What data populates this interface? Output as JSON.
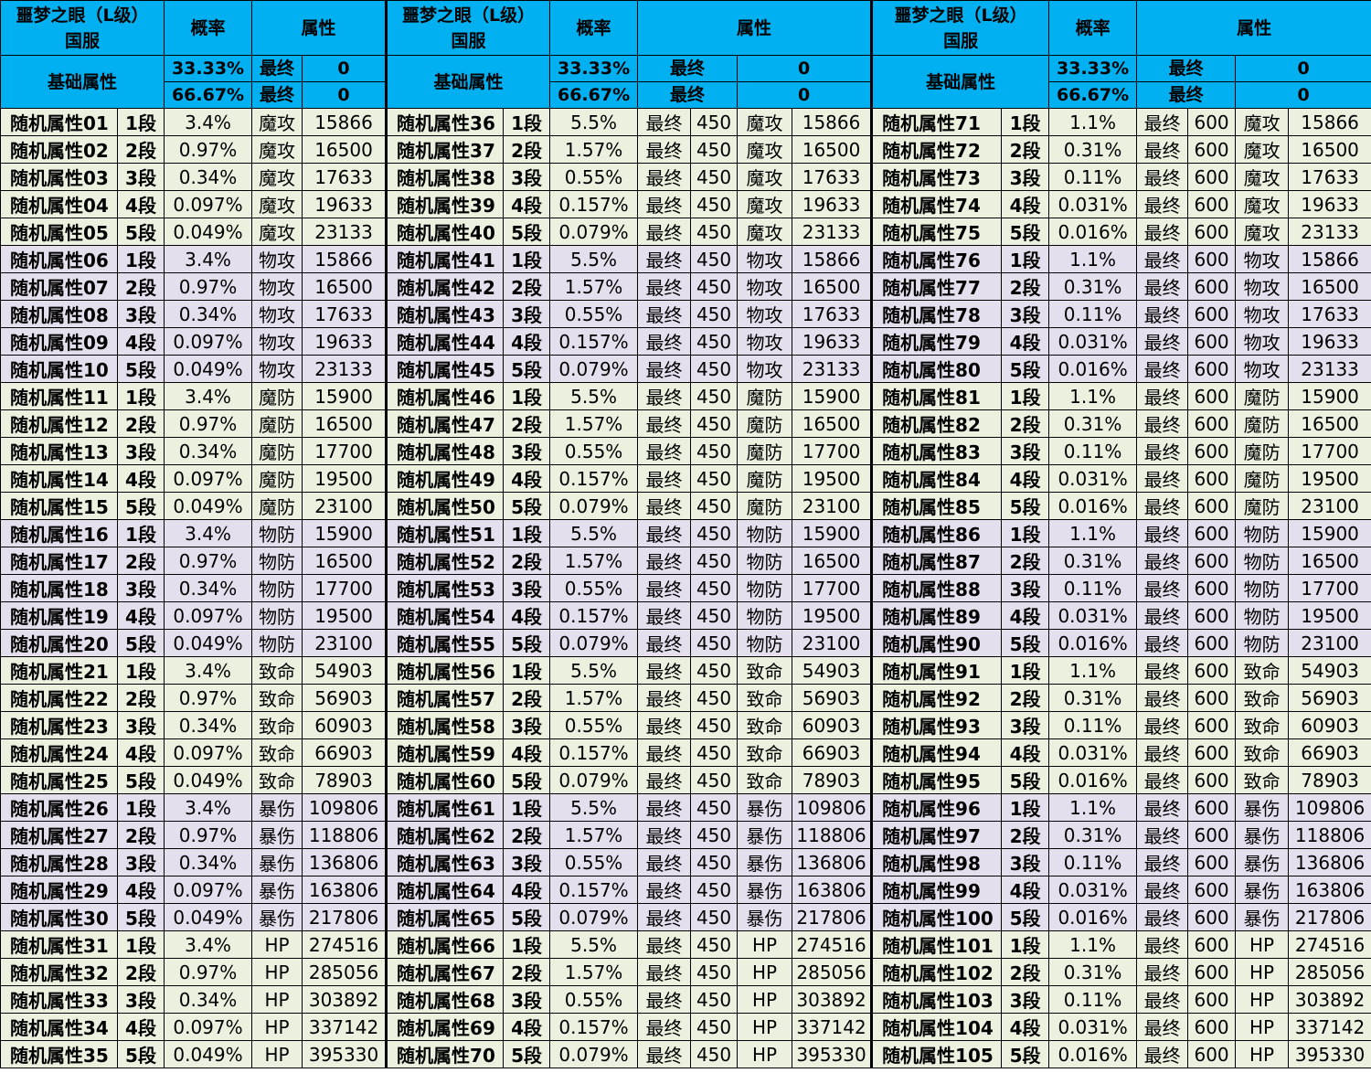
{
  "header": {
    "title_line1": "噩梦之眼（L级）",
    "title_line2": "国服",
    "prob_label": "概率",
    "attr_label": "属性",
    "base_label": "基础属性",
    "base_rows": [
      {
        "prob": "33.33%",
        "final": "最终",
        "val": "0"
      },
      {
        "prob": "66.67%",
        "final": "最终",
        "val": "0"
      }
    ]
  },
  "final_label": "最终",
  "panels": [
    {
      "start": 1,
      "probs": [
        "3.4%",
        "0.97%",
        "0.34%",
        "0.097%",
        "0.049%"
      ],
      "final_val": null
    },
    {
      "start": 36,
      "probs": [
        "5.5%",
        "1.57%",
        "0.55%",
        "0.157%",
        "0.079%"
      ],
      "final_val": "450"
    },
    {
      "start": 71,
      "probs": [
        "1.1%",
        "0.31%",
        "0.11%",
        "0.031%",
        "0.016%"
      ],
      "final_val": "600"
    }
  ],
  "name_prefix": "随机属性",
  "tiers": [
    "1段",
    "2段",
    "3段",
    "4段",
    "5段"
  ],
  "attr_groups": [
    {
      "attr": "魔攻",
      "values": [
        "15866",
        "16500",
        "17633",
        "19633",
        "23133"
      ]
    },
    {
      "attr": "物攻",
      "values": [
        "15866",
        "16500",
        "17633",
        "19633",
        "23133"
      ]
    },
    {
      "attr": "魔防",
      "values": [
        "15900",
        "16500",
        "17700",
        "19500",
        "23100"
      ]
    },
    {
      "attr": "物防",
      "values": [
        "15900",
        "16500",
        "17700",
        "19500",
        "23100"
      ]
    },
    {
      "attr": "致命",
      "values": [
        "54903",
        "56903",
        "60903",
        "66903",
        "78903"
      ]
    },
    {
      "attr": "暴伤",
      "values": [
        "109806",
        "118806",
        "136806",
        "163806",
        "217806"
      ]
    },
    {
      "attr": "HP",
      "values": [
        "274516",
        "285056",
        "303892",
        "337142",
        "395330"
      ]
    }
  ],
  "colors": {
    "header": "#00B0F0",
    "name": "#E8194A",
    "bandA": "#EBF1DE",
    "bandB": "#E4DFEC"
  }
}
